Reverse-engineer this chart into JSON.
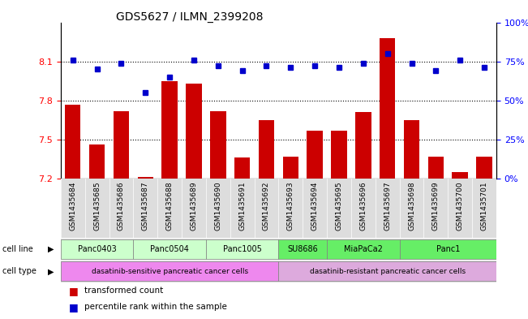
{
  "title": "GDS5627 / ILMN_2399208",
  "samples": [
    "GSM1435684",
    "GSM1435685",
    "GSM1435686",
    "GSM1435687",
    "GSM1435688",
    "GSM1435689",
    "GSM1435690",
    "GSM1435691",
    "GSM1435692",
    "GSM1435693",
    "GSM1435694",
    "GSM1435695",
    "GSM1435696",
    "GSM1435697",
    "GSM1435698",
    "GSM1435699",
    "GSM1435700",
    "GSM1435701"
  ],
  "bar_values": [
    7.77,
    7.46,
    7.72,
    7.21,
    7.95,
    7.93,
    7.72,
    7.36,
    7.65,
    7.37,
    7.57,
    7.57,
    7.71,
    8.28,
    7.65,
    7.37,
    7.25,
    7.37
  ],
  "dot_values": [
    76,
    70,
    74,
    55,
    65,
    76,
    72,
    69,
    72,
    71,
    72,
    71,
    74,
    80,
    74,
    69,
    76,
    71
  ],
  "ylim_left": [
    7.2,
    8.4
  ],
  "ylim_right": [
    0,
    100
  ],
  "yticks_left": [
    7.2,
    7.5,
    7.8,
    8.1
  ],
  "yticks_right": [
    0,
    25,
    50,
    75,
    100
  ],
  "bar_color": "#cc0000",
  "dot_color": "#0000cc",
  "grid_values": [
    7.5,
    7.8,
    8.1
  ],
  "cell_lines": [
    {
      "label": "Panc0403",
      "start": 0,
      "end": 2,
      "color": "#ccffcc"
    },
    {
      "label": "Panc0504",
      "start": 3,
      "end": 5,
      "color": "#ccffcc"
    },
    {
      "label": "Panc1005",
      "start": 6,
      "end": 8,
      "color": "#ccffcc"
    },
    {
      "label": "SU8686",
      "start": 9,
      "end": 10,
      "color": "#66ee66"
    },
    {
      "label": "MiaPaCa2",
      "start": 11,
      "end": 13,
      "color": "#66ee66"
    },
    {
      "label": "Panc1",
      "start": 14,
      "end": 17,
      "color": "#66ee66"
    }
  ],
  "cell_types": [
    {
      "label": "dasatinib-sensitive pancreatic cancer cells",
      "start": 0,
      "end": 8,
      "color": "#ee88ee"
    },
    {
      "label": "dasatinib-resistant pancreatic cancer cells",
      "start": 9,
      "end": 17,
      "color": "#ddaadd"
    }
  ],
  "legend_items": [
    {
      "color": "#cc0000",
      "label": "transformed count"
    },
    {
      "color": "#0000cc",
      "label": "percentile rank within the sample"
    }
  ]
}
